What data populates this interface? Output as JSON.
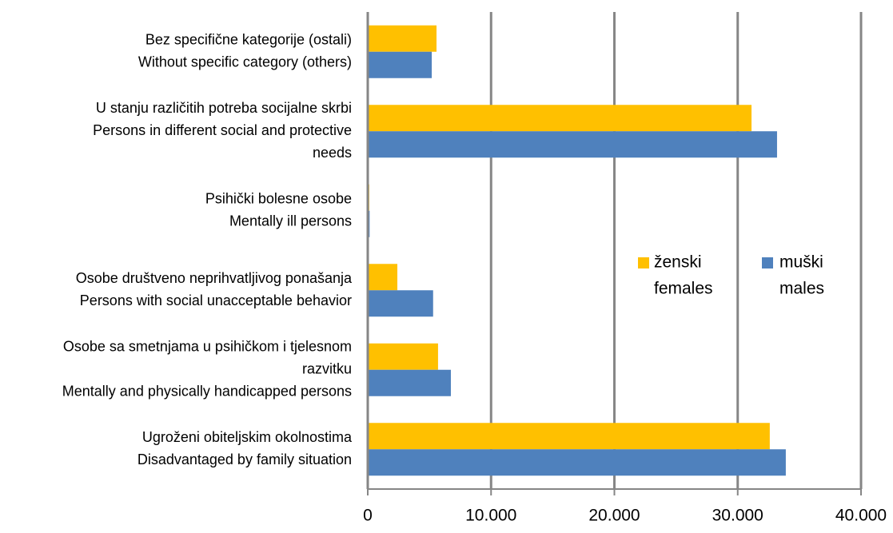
{
  "chart_data": {
    "type": "hbar",
    "categories": [
      [
        "Bez specifične kategorije (ostali)",
        "Without specific category (others)"
      ],
      [
        "U stanju različitih potreba socijalne skrbi",
        "Persons in different social and protective",
        "needs"
      ],
      [
        "Psihički bolesne osobe",
        "Mentally ill persons"
      ],
      [
        "Osobe društveno neprihvatljivog ponašanja",
        "Persons with social unacceptable behavior"
      ],
      [
        "Osobe sa smetnjama u psihičkom i tjelesnom",
        "razvitku",
        "Mentally and physically handicapped persons"
      ],
      [
        "Ugroženi obiteljskim okolnostima",
        "Disadvantaged by family situation"
      ]
    ],
    "series": [
      {
        "name": [
          "ženski",
          "females"
        ],
        "color": "#FFC000",
        "values": [
          5575,
          31120,
          120,
          2400,
          5700,
          32600
        ]
      },
      {
        "name": [
          "muški",
          "males"
        ],
        "color": "#4F81BD",
        "values": [
          5190,
          33190,
          150,
          5300,
          6740,
          33900
        ]
      }
    ],
    "xlim": [
      0,
      40000
    ],
    "xticks": [
      0,
      {
        "value": 10000,
        "label": "10.000"
      },
      {
        "value": 20000,
        "label": "20.000"
      },
      {
        "value": 30000,
        "label": "30.000"
      },
      {
        "value": 40000,
        "label": "40.000"
      }
    ],
    "grid": true
  }
}
